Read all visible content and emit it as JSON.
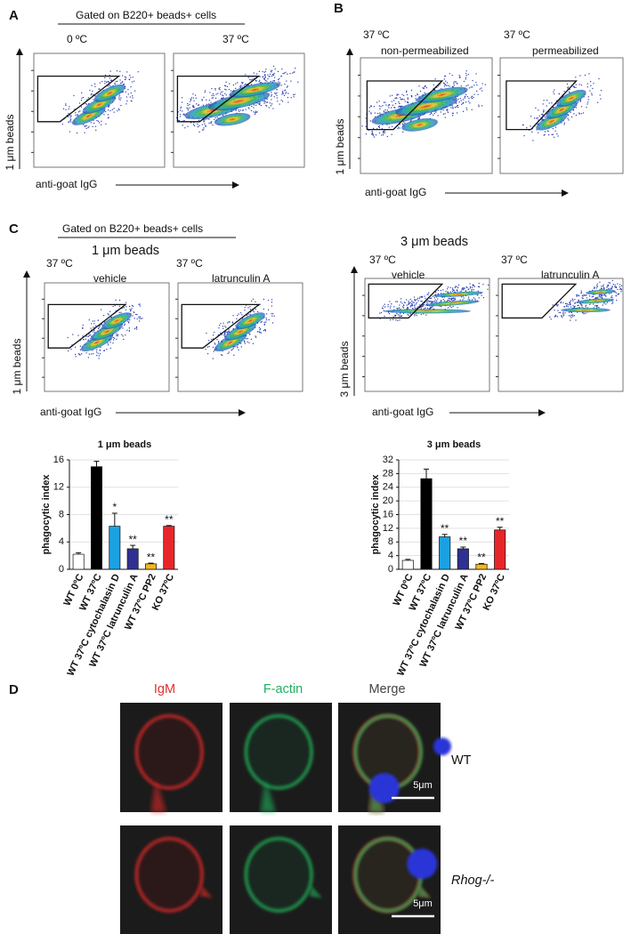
{
  "panel_labels": [
    "A",
    "B",
    "C",
    "D"
  ],
  "panel_a": {
    "gate_title": "Gated on B220+ beads+ cells",
    "plot_titles": [
      "0 ºC",
      "37 ºC"
    ],
    "y_label": "1 μm beads",
    "x_label": "anti-goat IgG"
  },
  "panel_b": {
    "plots": [
      {
        "temperature": "37 ºC",
        "condition": "non-permeabilized"
      },
      {
        "temperature": "37 ºC",
        "condition": "permeabilized"
      }
    ],
    "y_label": "1 μm beads",
    "x_label": "anti-goat IgG"
  },
  "panel_c": {
    "gate_title": "Gated on B220+ beads+ cells",
    "groups": [
      {
        "title": "1 μm beads",
        "plots": [
          {
            "temperature": "37 ºC",
            "condition": "vehicle"
          },
          {
            "temperature": "37 ºC",
            "condition": "latrunculin A"
          }
        ],
        "y_label": "1 μm beads",
        "x_label": "anti-goat IgG"
      },
      {
        "title": "3 μm beads",
        "plots": [
          {
            "temperature": "37 ºC",
            "condition": "vehicle"
          },
          {
            "temperature": "37 ºC",
            "condition": "latrunculin A"
          }
        ],
        "y_label": "3 μm beads",
        "x_label": "anti-goat IgG"
      }
    ]
  },
  "chart_data": [
    {
      "type": "bar",
      "title": "1 μm beads",
      "y_label": "phagocytic index",
      "categories": [
        "WT 0ºC",
        "WT 37ºC",
        "WT 37ºC cytochalasin D",
        "WT 37ºC latrunculin A",
        "WT 37ºC PP2",
        "KO 37ºC"
      ],
      "values": [
        2.2,
        15,
        6.3,
        3,
        0.8,
        6.3
      ],
      "errors": [
        0.2,
        0.8,
        1.9,
        0.5,
        0.1,
        0.1
      ],
      "annotations": [
        null,
        null,
        "*",
        "**",
        "**",
        "**"
      ],
      "colors": [
        "#ffffff",
        "#000000",
        "#1ba1e2",
        "#2e3192",
        "#f2b91e",
        "#e8262a"
      ],
      "ylim": [
        0,
        16
      ],
      "yticks": [
        0,
        4,
        8,
        12,
        16
      ],
      "grid": true
    },
    {
      "type": "bar",
      "title": "3 μm beads",
      "y_label": "phagocytic index",
      "categories": [
        "WT 0ºC",
        "WT 37ºC",
        "WT 37ºC cytochalasin D",
        "WT 37ºC latrunculin A",
        "WT 37ºC PP2",
        "KO 37ºC"
      ],
      "values": [
        2.6,
        26.5,
        9.5,
        6,
        1.5,
        11.5
      ],
      "errors": [
        0.3,
        2.8,
        0.7,
        0.5,
        0.2,
        0.8
      ],
      "annotations": [
        null,
        null,
        "**",
        "**",
        "**",
        "**"
      ],
      "colors": [
        "#ffffff",
        "#000000",
        "#1ba1e2",
        "#2e3192",
        "#f2b91e",
        "#e8262a"
      ],
      "ylim": [
        0,
        32
      ],
      "yticks": [
        0,
        4,
        8,
        12,
        16,
        20,
        24,
        28,
        32
      ],
      "grid": true
    }
  ],
  "panel_d": {
    "columns": [
      "IgM",
      "F-actin",
      "Merge"
    ],
    "rows": [
      "WT",
      "Rhog-/-"
    ],
    "scale_bars": [
      "5μm",
      "5μm"
    ]
  }
}
